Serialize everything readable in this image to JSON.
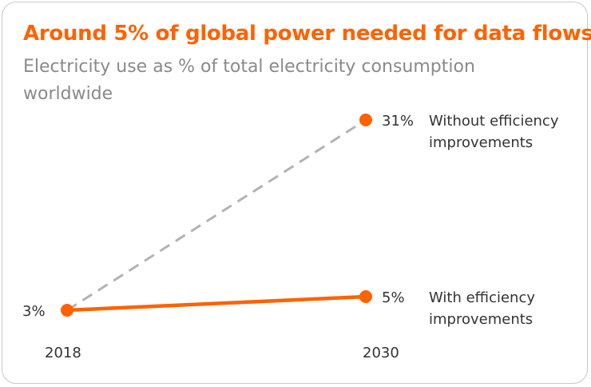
{
  "title": "Around 5% of global power needed for data flows",
  "subtitle": "Electricity use as % of total electricity consumption worldwide",
  "colors": {
    "accent": "#ff6200",
    "dashed_series": "#b3b3b3",
    "text": "#333333",
    "subtitle": "#8a8a8a"
  },
  "chart_data": {
    "type": "line",
    "title": "Around 5% of global power needed for data flows",
    "subtitle": "Electricity use as % of total electricity consumption worldwide",
    "x": [
      "2018",
      "2030"
    ],
    "start_label": "3%",
    "series": [
      {
        "name": "Without efficiency improvements",
        "label_lines": [
          "Without efficiency",
          "improvements"
        ],
        "values": [
          3,
          31
        ],
        "end_label": "31%",
        "style": "dashed",
        "color": "#b3b3b3"
      },
      {
        "name": "With efficiency improvements",
        "label_lines": [
          "With efficiency",
          "improvements"
        ],
        "values": [
          3,
          5
        ],
        "end_label": "5%",
        "style": "solid",
        "color": "#ff6200"
      }
    ],
    "ylim": [
      0,
      35
    ],
    "grid": false,
    "legend": "none (direct labels at line ends)"
  }
}
